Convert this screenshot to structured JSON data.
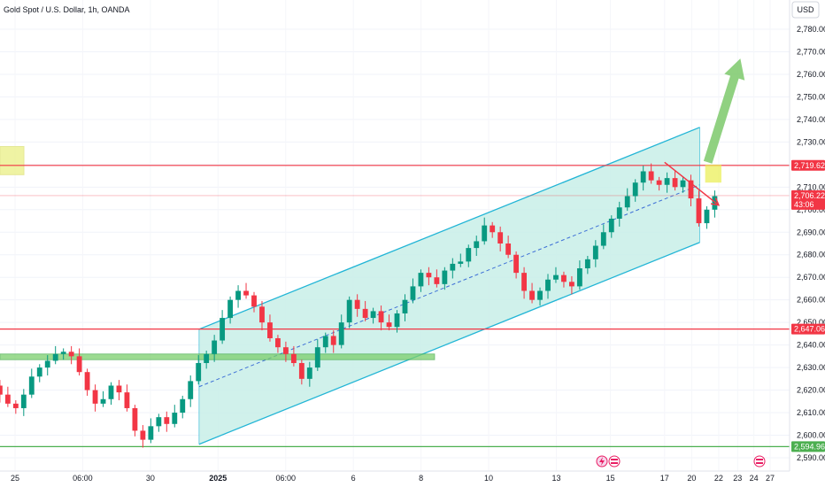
{
  "header": {
    "title": "Gold Spot / U.S. Dollar, 1h, OANDA",
    "currency_button": "USD"
  },
  "colors": {
    "up": "#089981",
    "down": "#f23645",
    "channel_fill": "#c8efe8",
    "channel_line": "#22b5d6",
    "hline_red": "#f23645",
    "hline_green": "#4caf50",
    "arrow_green": "#7cc96b",
    "target_yellow": "#eef29a",
    "trend_red": "#f23645"
  },
  "chart_data": {
    "type": "candlestick",
    "title": "Gold Spot / U.S. Dollar, 1h, OANDA",
    "y_range": [
      2587,
      2787
    ],
    "y_ticks": [
      2590,
      2600,
      2610,
      2620,
      2630,
      2640,
      2650,
      2660,
      2670,
      2680,
      2690,
      2700,
      2710,
      2720,
      2730,
      2740,
      2750,
      2760,
      2770,
      2780
    ],
    "x_range": [
      24.9,
      27.8
    ],
    "x_labels": [
      {
        "x": 25.0,
        "label": "25",
        "bold": false
      },
      {
        "x": 25.25,
        "label": "06:00",
        "bold": false
      },
      {
        "x": 25.5,
        "label": "30",
        "bold": false
      },
      {
        "x": 25.75,
        "label": "2025",
        "bold": true
      },
      {
        "x": 26.0,
        "label": "06:00",
        "bold": false
      },
      {
        "x": 26.25,
        "label": "6",
        "bold": false
      },
      {
        "x": 26.5,
        "label": "8",
        "bold": false
      },
      {
        "x": 26.75,
        "label": "10",
        "bold": false
      },
      {
        "x": 27.0,
        "label": "13",
        "bold": false
      },
      {
        "x": 27.2,
        "label": "15",
        "bold": false
      },
      {
        "x": 27.4,
        "label": "17",
        "bold": false
      },
      {
        "x": 27.5,
        "label": "20",
        "bold": false
      },
      {
        "x": 27.6,
        "label": "22",
        "bold": false
      },
      {
        "x": 27.67,
        "label": "23",
        "bold": false
      },
      {
        "x": 27.73,
        "label": "24",
        "bold": false
      },
      {
        "x": 27.79,
        "label": "27",
        "bold": false
      }
    ],
    "price_tags": [
      {
        "value": 2719.625,
        "label": "2,719.625",
        "color": "#f23645"
      },
      {
        "value": 2706.225,
        "label": "2,706.225",
        "sublabel": "43:06",
        "color": "#f23645"
      },
      {
        "value": 2647.066,
        "label": "2,647.066",
        "color": "#f23645"
      },
      {
        "value": 2594.966,
        "label": "2,594.966",
        "color": "#4caf50"
      }
    ],
    "horizontal_lines": [
      {
        "value": 2719.625,
        "color": "red"
      },
      {
        "value": 2647.066,
        "color": "red"
      },
      {
        "value": 2594.966,
        "color": "green"
      }
    ],
    "support_zone": {
      "x_start": 24.9,
      "x_end": 26.55,
      "low": 2633.5,
      "high": 2636.0
    },
    "channel": {
      "x_start": 25.68,
      "x_end": 27.53,
      "upper_start": 2647.0,
      "upper_end": 2736.5,
      "lower_start": 2596.0,
      "lower_end": 2685.5
    },
    "trend_arrow": {
      "x_start": 27.4,
      "y_start": 2721.0,
      "x_end": 27.6,
      "y_end": 2702.0
    },
    "target_zone": {
      "x_start": 27.55,
      "x_end": 27.61,
      "low": 2712.0,
      "high": 2720.0
    },
    "projection_arrow": {
      "x_start": 27.56,
      "y_start": 2721.0,
      "x_end": 27.68,
      "y_end": 2767.0
    },
    "left_zone": {
      "x_start": 24.9,
      "x_end": 24.93,
      "low": 2715.5,
      "high": 2728.0
    },
    "close": [
      2622,
      2618,
      2614,
      2612,
      2618,
      2626,
      2630,
      2633,
      2636,
      2637,
      2635,
      2628,
      2620,
      2614,
      2616,
      2622,
      2619,
      2612,
      2602,
      2598,
      2604,
      2608,
      2605,
      2610,
      2616,
      2624,
      2632,
      2636,
      2642,
      2652,
      2660,
      2664,
      2662,
      2657,
      2650,
      2643,
      2639,
      2636,
      2632,
      2625,
      2630,
      2639,
      2644,
      2640,
      2650,
      2660,
      2656,
      2652,
      2655,
      2650,
      2648,
      2654,
      2660,
      2666,
      2672,
      2670,
      2667,
      2673,
      2676,
      2677,
      2683,
      2686,
      2693,
      2690,
      2685,
      2680,
      2672,
      2664,
      2660,
      2664,
      2669,
      2671,
      2668,
      2666,
      2674,
      2678,
      2684,
      2690,
      2696,
      2701,
      2706,
      2712,
      2717,
      2713,
      2711,
      2714,
      2710,
      2713,
      2705,
      2694,
      2700,
      2706
    ]
  }
}
